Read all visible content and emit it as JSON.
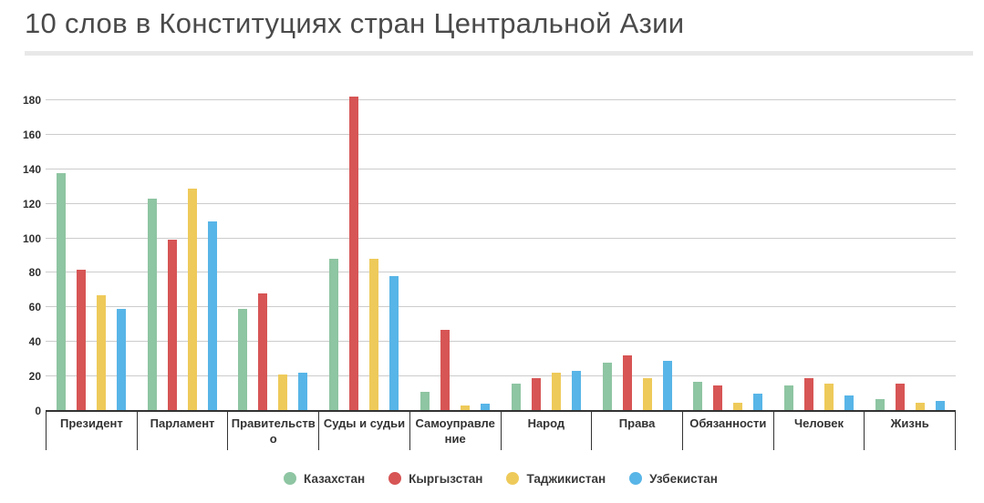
{
  "title": "10 слов в Конституциях стран Центральной Азии",
  "colors": {
    "kazakhstan_green": "#8ec5a2",
    "kyrgyzstan_red": "#d75555",
    "tajikistan_yellow": "#eeca5a",
    "uzbekistan_blue": "#58b5e7",
    "gridline": "#cccccc",
    "axis": "#333333",
    "title_text": "#4a4a4a"
  },
  "chart_data": {
    "type": "bar",
    "title": "10 слов в Конституциях стран Центральной Азии",
    "categories": [
      "Президент",
      "Парламент",
      "Правительство",
      "Суды и судьи",
      "Самоуправление",
      "Народ",
      "Права",
      "Обязанности",
      "Человек",
      "Жизнь"
    ],
    "series": [
      {
        "name": "Казахстан",
        "color": "#8ec5a2",
        "values": [
          138,
          123,
          59,
          88,
          11,
          16,
          28,
          17,
          15,
          7
        ]
      },
      {
        "name": "Кыргызстан",
        "color": "#d75555",
        "values": [
          82,
          99,
          68,
          182,
          47,
          19,
          32,
          15,
          19,
          16
        ]
      },
      {
        "name": "Таджикистан",
        "color": "#eeca5a",
        "values": [
          67,
          129,
          21,
          88,
          3,
          22,
          19,
          5,
          16,
          5
        ]
      },
      {
        "name": "Узбекистан",
        "color": "#58b5e7",
        "values": [
          59,
          110,
          22,
          78,
          4,
          23,
          29,
          10,
          9,
          6
        ]
      }
    ],
    "xlabel": "",
    "ylabel": "",
    "ylim": [
      0,
      190
    ],
    "yticks": [
      0,
      20,
      40,
      60,
      80,
      100,
      120,
      140,
      160,
      180
    ],
    "grid": true,
    "legend_position": "bottom"
  }
}
